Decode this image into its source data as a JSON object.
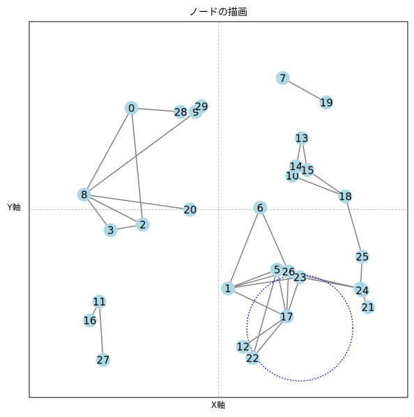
{
  "chart_data": {
    "type": "network-graph",
    "title": "ノードの描画",
    "xlabel": "X軸",
    "ylabel": "Y軸",
    "xlim": [
      -1,
      1
    ],
    "ylim": [
      -1,
      1
    ],
    "ticks_visible": false,
    "crosshair_lines": [
      {
        "axis": "x",
        "value": 0
      },
      {
        "axis": "y",
        "value": 0
      }
    ],
    "node_color": "#add8e6",
    "edge_color": "#808080",
    "nodes": [
      {
        "id": "0",
        "x": -0.46,
        "y": 0.54
      },
      {
        "id": "1",
        "x": 0.05,
        "y": -0.42
      },
      {
        "id": "2",
        "x": -0.4,
        "y": -0.08
      },
      {
        "id": "3",
        "x": -0.57,
        "y": -0.11
      },
      {
        "id": "4",
        "x": 0.75,
        "y": -0.42
      },
      {
        "id": "5",
        "x": 0.31,
        "y": -0.32
      },
      {
        "id": "6",
        "x": 0.22,
        "y": 0.01
      },
      {
        "id": "7",
        "x": 0.34,
        "y": 0.7
      },
      {
        "id": "8",
        "x": -0.71,
        "y": 0.08
      },
      {
        "id": "9",
        "x": -0.12,
        "y": 0.52
      },
      {
        "id": "10",
        "x": 0.39,
        "y": 0.18
      },
      {
        "id": "11",
        "x": -0.63,
        "y": -0.49
      },
      {
        "id": "12",
        "x": 0.13,
        "y": -0.73
      },
      {
        "id": "13",
        "x": 0.44,
        "y": 0.38
      },
      {
        "id": "14",
        "x": 0.41,
        "y": 0.23
      },
      {
        "id": "15",
        "x": 0.47,
        "y": 0.21
      },
      {
        "id": "16",
        "x": -0.68,
        "y": -0.59
      },
      {
        "id": "17",
        "x": 0.36,
        "y": -0.57
      },
      {
        "id": "18",
        "x": 0.67,
        "y": 0.07
      },
      {
        "id": "19",
        "x": 0.57,
        "y": 0.57
      },
      {
        "id": "20",
        "x": -0.15,
        "y": 0.0
      },
      {
        "id": "21",
        "x": 0.79,
        "y": -0.52
      },
      {
        "id": "22",
        "x": 0.18,
        "y": -0.79
      },
      {
        "id": "23",
        "x": 0.43,
        "y": -0.36
      },
      {
        "id": "24",
        "x": 0.76,
        "y": -0.43
      },
      {
        "id": "25",
        "x": 0.76,
        "y": -0.25
      },
      {
        "id": "26",
        "x": 0.37,
        "y": -0.33
      },
      {
        "id": "27",
        "x": -0.61,
        "y": -0.8
      },
      {
        "id": "28",
        "x": -0.2,
        "y": 0.52
      },
      {
        "id": "29",
        "x": -0.09,
        "y": 0.55
      }
    ],
    "edges": [
      [
        "0",
        "28"
      ],
      [
        "0",
        "2"
      ],
      [
        "0",
        "8"
      ],
      [
        "8",
        "9"
      ],
      [
        "8",
        "20"
      ],
      [
        "8",
        "3"
      ],
      [
        "8",
        "2"
      ],
      [
        "3",
        "2"
      ],
      [
        "7",
        "19"
      ],
      [
        "13",
        "14"
      ],
      [
        "13",
        "15"
      ],
      [
        "14",
        "10"
      ],
      [
        "15",
        "18"
      ],
      [
        "10",
        "18"
      ],
      [
        "18",
        "25"
      ],
      [
        "25",
        "4"
      ],
      [
        "4",
        "24"
      ],
      [
        "4",
        "21"
      ],
      [
        "4",
        "23"
      ],
      [
        "4",
        "5"
      ],
      [
        "6",
        "1"
      ],
      [
        "6",
        "26"
      ],
      [
        "1",
        "5"
      ],
      [
        "1",
        "26"
      ],
      [
        "1",
        "23"
      ],
      [
        "1",
        "17"
      ],
      [
        "5",
        "17"
      ],
      [
        "5",
        "22"
      ],
      [
        "26",
        "17"
      ],
      [
        "23",
        "17"
      ],
      [
        "17",
        "12"
      ],
      [
        "17",
        "22"
      ],
      [
        "11",
        "16"
      ],
      [
        "11",
        "27"
      ]
    ],
    "annotations": [
      {
        "type": "circle",
        "center": [
          0.43,
          -0.63
        ],
        "radius": 0.28,
        "style": "dotted",
        "color": "#0000ff"
      }
    ]
  }
}
